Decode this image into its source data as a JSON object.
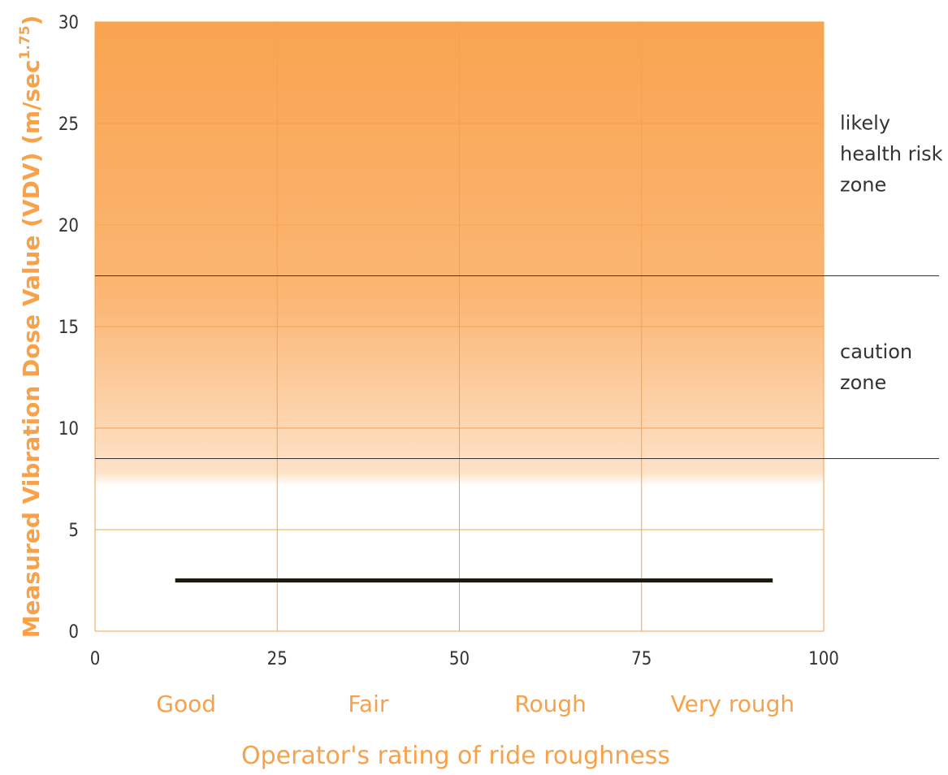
{
  "chart_data": {
    "type": "line",
    "xlabel": "Operator's rating of ride roughness",
    "ylabel": "Measured Vibration Dose Value (VDV) (m/sec",
    "ylabel_exponent": "1.75",
    "ylabel_suffix": ")",
    "xlim": [
      0,
      100
    ],
    "ylim": [
      0,
      30
    ],
    "x_ticks": [
      0,
      25,
      50,
      75,
      100
    ],
    "y_ticks": [
      0,
      5,
      10,
      15,
      20,
      25,
      30
    ],
    "grid": true,
    "categories": [
      {
        "label": "Good",
        "x": 12.5
      },
      {
        "label": "Fair",
        "x": 37.5
      },
      {
        "label": "Rough",
        "x": 62.5
      },
      {
        "label": "Very rough",
        "x": 87.5
      }
    ],
    "thresholds": [
      {
        "value": 17.5,
        "label_lines": [
          "likely",
          "health risk",
          "zone"
        ],
        "label_y": 23.5
      },
      {
        "value": 8.5,
        "label_lines": [
          "caution",
          "zone"
        ],
        "label_y": 13
      }
    ],
    "series": [
      {
        "x": [
          11,
          93
        ],
        "y": [
          2.5,
          2.5
        ]
      }
    ],
    "colors": {
      "accent": "#f7a24a",
      "zone_top": "#f9a450",
      "zone_fade": "#ffffff",
      "line": "#1f1a0f",
      "threshold": "#333333",
      "grid": "#f7a24a"
    }
  }
}
